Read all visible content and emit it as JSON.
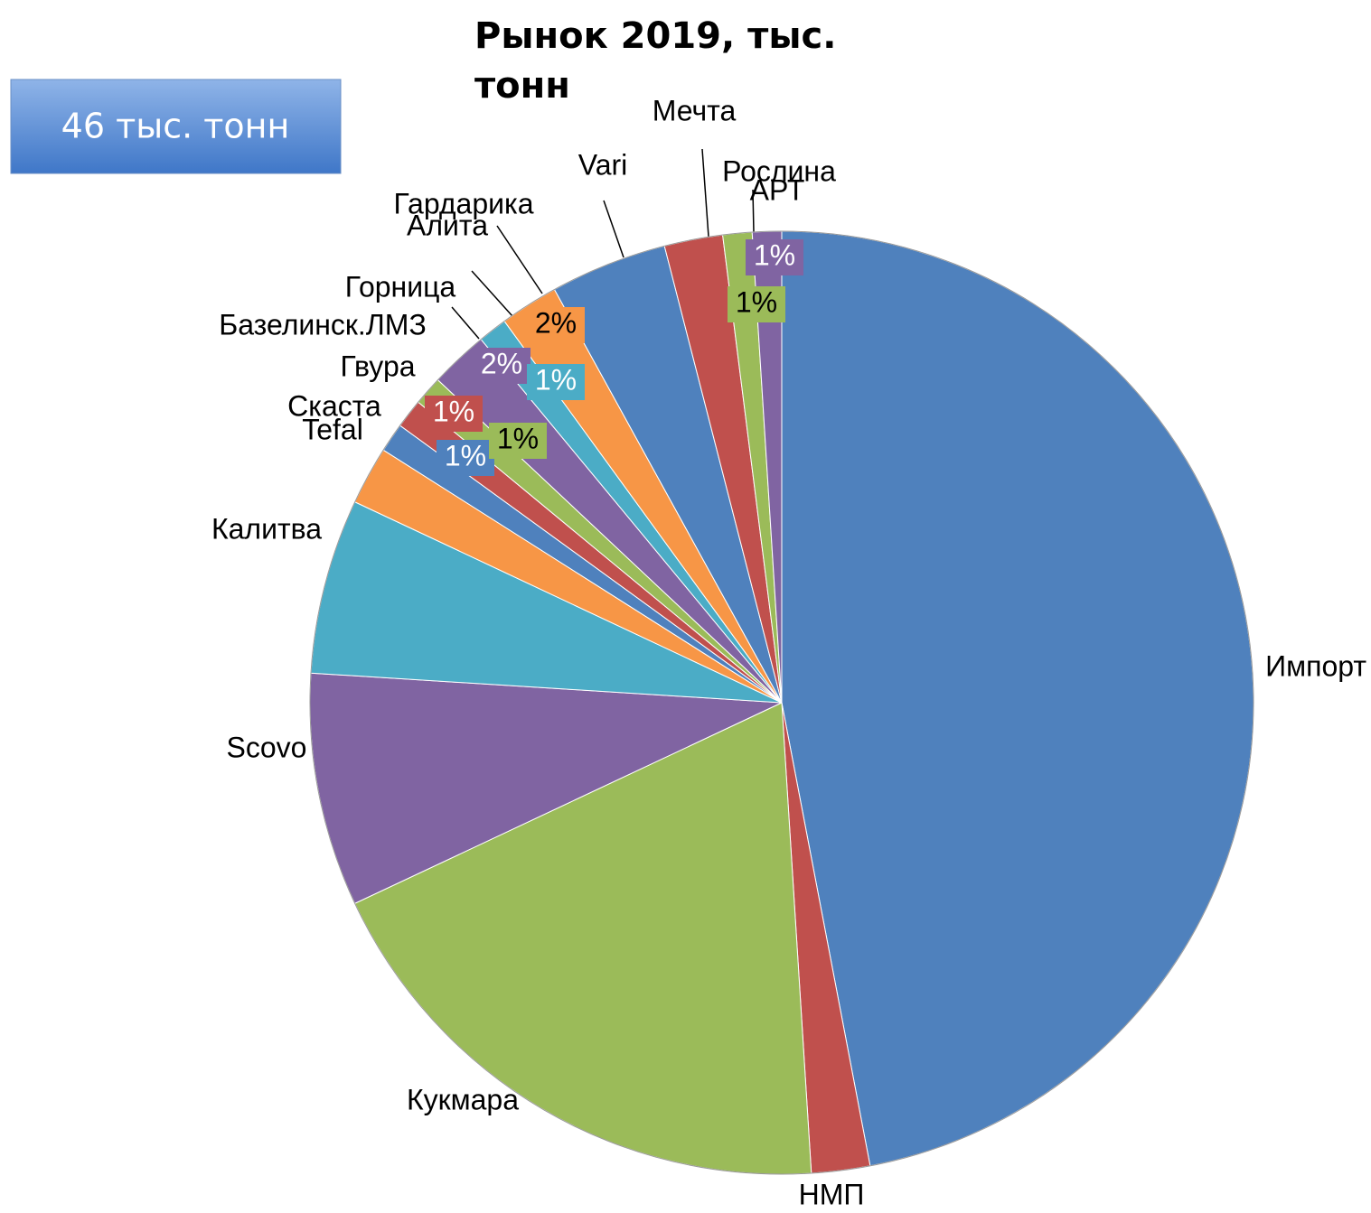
{
  "chart_data": {
    "type": "pie",
    "title": [
      "Рынок 2019, тыс.",
      "тонн"
    ],
    "annotation": "46 тыс. тонн",
    "categories": [
      "Импорт",
      "НМП",
      "Кукмара",
      "Scovo",
      "Калитва",
      "Tefal",
      "Скаста",
      "Гвура",
      "Базелинск.ЛМЗ",
      "Горница",
      "Алита",
      "Гардарика",
      "Vari",
      "Мечта",
      "Рослина",
      "АРТ"
    ],
    "values": [
      47,
      2,
      19,
      8,
      6,
      2,
      1,
      1,
      1,
      2,
      1,
      2,
      4,
      2,
      1,
      1
    ],
    "value_labels": [
      null,
      null,
      null,
      null,
      null,
      null,
      "1%",
      "1%",
      "1%",
      "2%",
      "1%",
      "2%",
      null,
      null,
      "1%",
      "1%"
    ],
    "colors": [
      "#4f81bd",
      "#c0504d",
      "#9bbb59",
      "#8064a2",
      "#4bacc6",
      "#f79646",
      "#4f81bd",
      "#c0504d",
      "#9bbb59",
      "#8064a2",
      "#4bacc6",
      "#f79646",
      "#4f81bd",
      "#c0504d",
      "#9bbb59",
      "#8064a2"
    ]
  }
}
